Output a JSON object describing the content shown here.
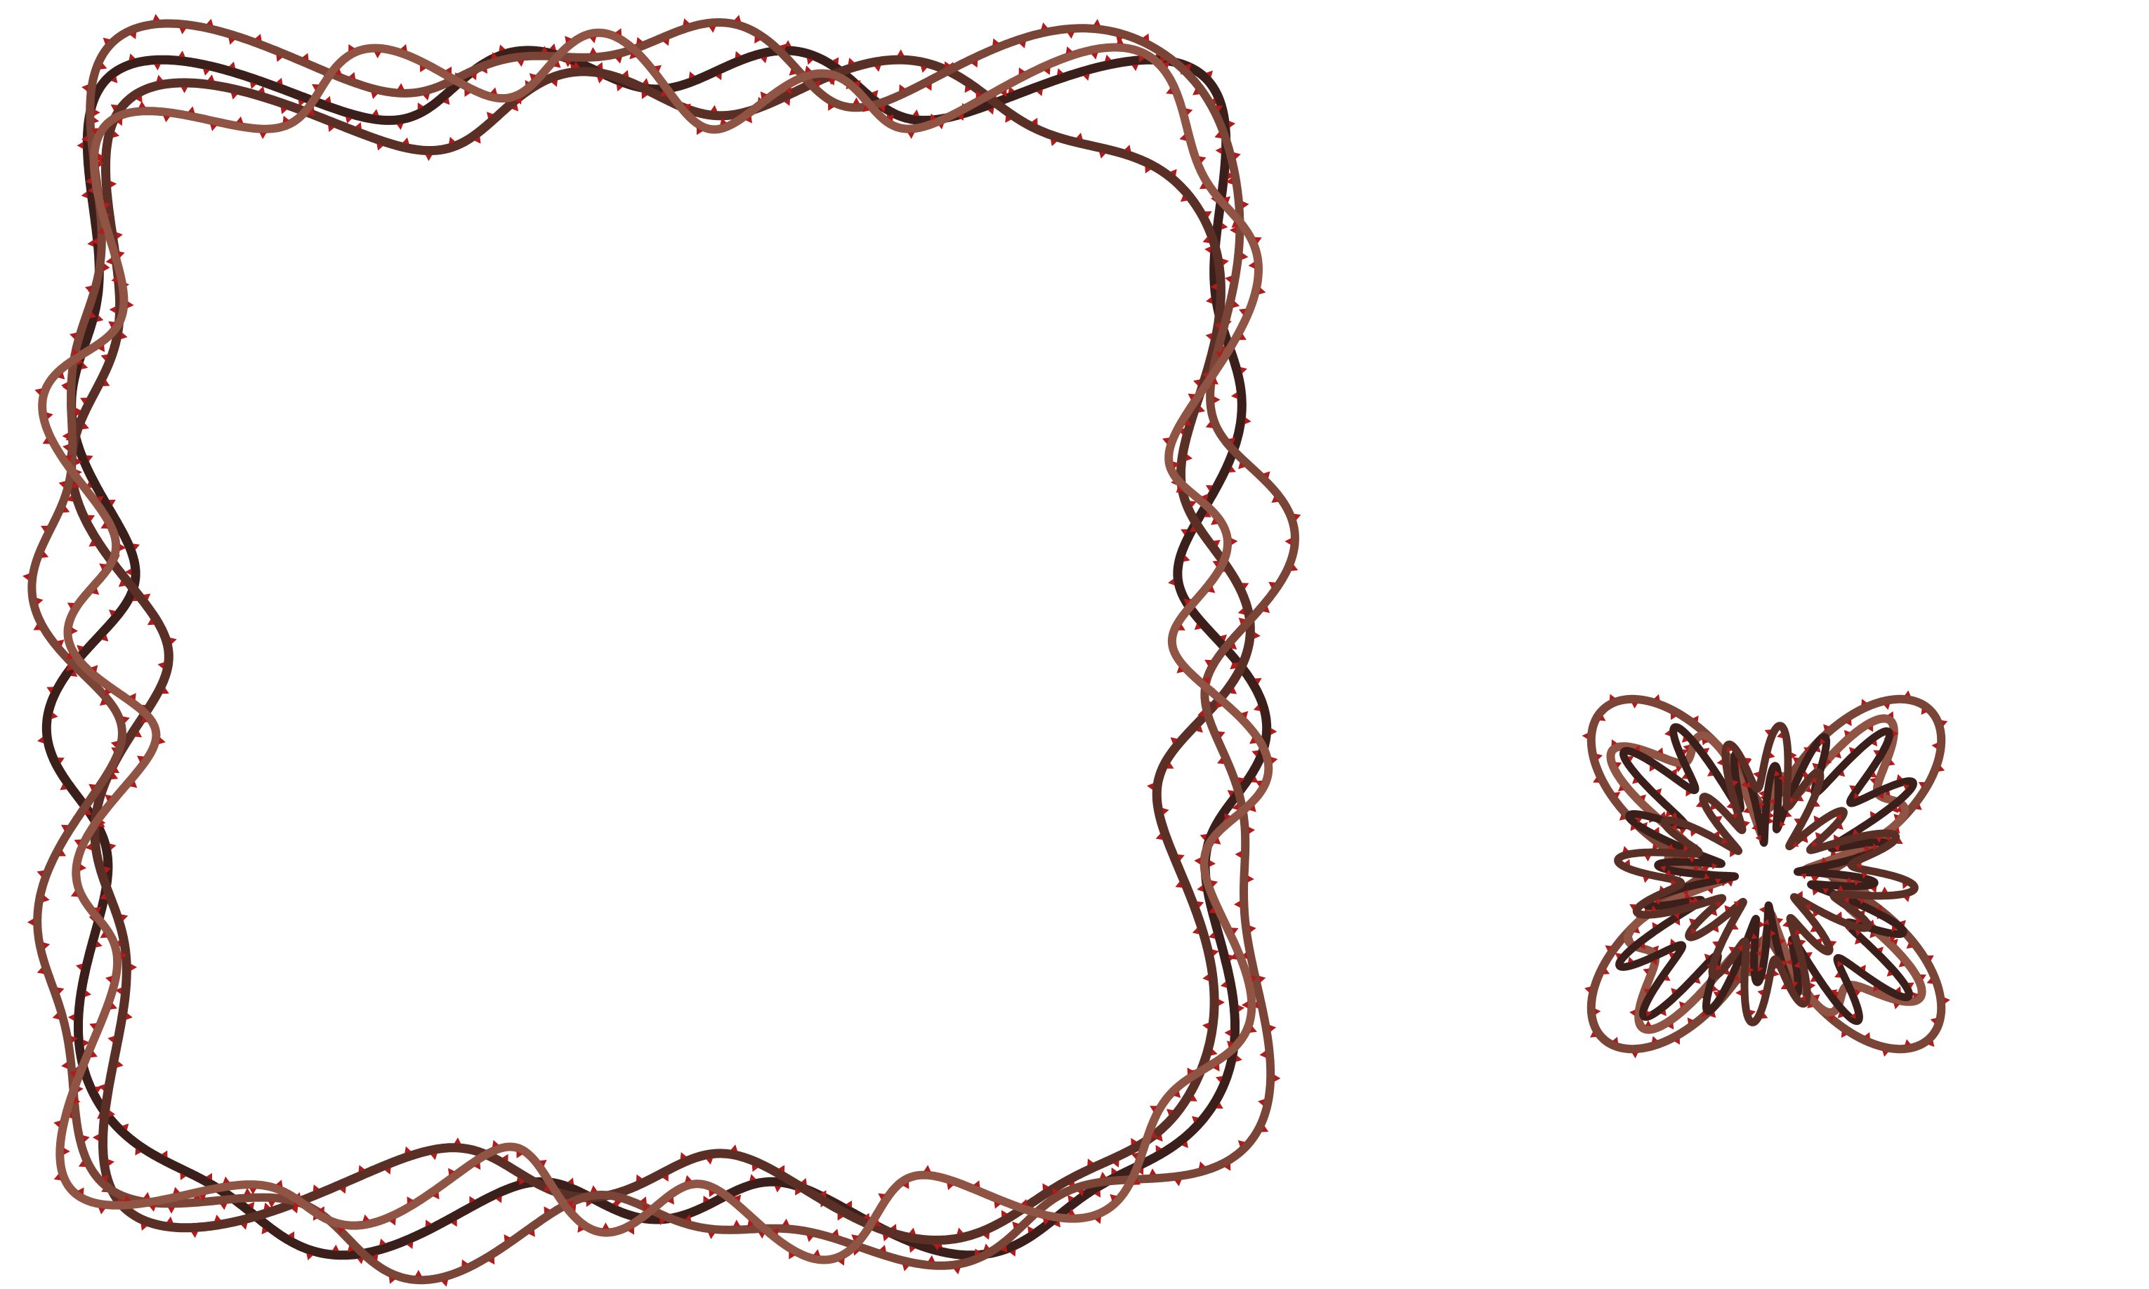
{
  "artwork": {
    "background_color": "#ffffff",
    "vine_colors": [
      "#3b1f1a",
      "#5a3026",
      "#7a4536",
      "#8f5444"
    ],
    "thorn_color": "#b01c1c",
    "panels": [
      {
        "name": "square-thorn-frame",
        "shape": "square",
        "strands": 4
      },
      {
        "name": "x-shaped-thorn-knot",
        "shape": "four-lobed-x",
        "strands": 4
      }
    ]
  }
}
